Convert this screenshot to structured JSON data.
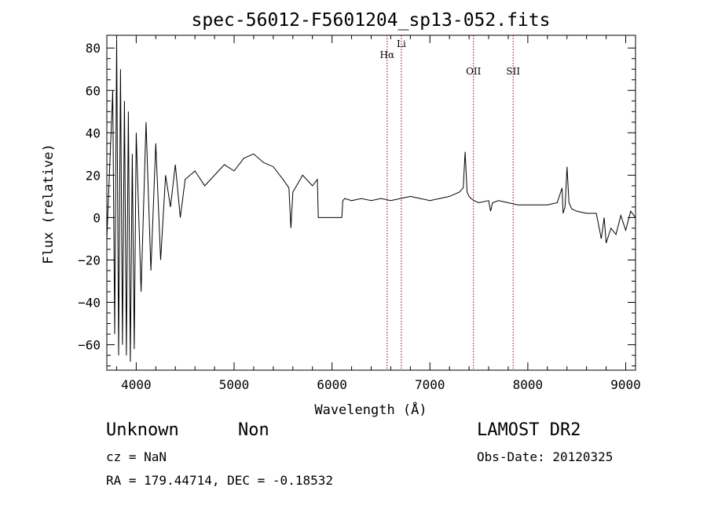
{
  "chart_data": {
    "type": "line",
    "title": "spec-56012-F5601204_sp13-052.fits",
    "xlabel": "Wavelength (Å)",
    "ylabel": "Flux (relative)",
    "xlim": [
      3700,
      9100
    ],
    "ylim": [
      -72,
      86
    ],
    "x_ticks": [
      4000,
      5000,
      6000,
      7000,
      8000,
      9000
    ],
    "y_ticks": [
      -60,
      -40,
      -20,
      0,
      20,
      40,
      60,
      80
    ],
    "grid": false,
    "line_color": "#000000",
    "marker_color": "#8b0000",
    "markers": [
      {
        "label": "Hα",
        "wavelength": 6563
      },
      {
        "label": "Li",
        "wavelength": 6708
      },
      {
        "label": "OII",
        "wavelength": 7445
      },
      {
        "label": "SII",
        "wavelength": 7850
      }
    ],
    "series": [
      {
        "x": [
          3700,
          3760,
          3780,
          3800,
          3820,
          3840,
          3860,
          3880,
          3900,
          3920,
          3940,
          3960,
          3980,
          4000,
          4050,
          4100,
          4150,
          4200,
          4250,
          4300,
          4350,
          4400,
          4450,
          4500,
          4600,
          4700,
          4800,
          4900,
          5000,
          5100,
          5200,
          5300,
          5400,
          5500,
          5560,
          5580,
          5600,
          5700,
          5800,
          5850,
          5860,
          6100,
          6110,
          6130,
          6200,
          6300,
          6400,
          6500,
          6600,
          6700,
          6800,
          6900,
          7000,
          7100,
          7200,
          7300,
          7340,
          7360,
          7380,
          7400,
          7420,
          7450,
          7500,
          7600,
          7620,
          7640,
          7700,
          7800,
          7900,
          8000,
          8100,
          8200,
          8300,
          8350,
          8360,
          8380,
          8400,
          8420,
          8450,
          8500,
          8600,
          8700,
          8750,
          8780,
          8800,
          8850,
          8900,
          8950,
          9000,
          9050,
          9100
        ],
        "y": [
          -10,
          60,
          -55,
          84,
          -65,
          70,
          -60,
          55,
          -65,
          50,
          -68,
          30,
          -62,
          40,
          -35,
          45,
          -25,
          35,
          -20,
          20,
          5,
          25,
          0,
          18,
          22,
          15,
          20,
          25,
          22,
          28,
          30,
          26,
          24,
          18,
          14,
          -5,
          12,
          20,
          15,
          18,
          0,
          0,
          8,
          9,
          8,
          9,
          8,
          9,
          8,
          9,
          10,
          9,
          8,
          9,
          10,
          12,
          14,
          31,
          12,
          10,
          9,
          8,
          7,
          8,
          3,
          7,
          8,
          7,
          6,
          6,
          6,
          6,
          7,
          14,
          2,
          5,
          24,
          7,
          4,
          3,
          2,
          2,
          -10,
          0,
          -12,
          -5,
          -8,
          1,
          -6,
          3,
          0
        ]
      }
    ]
  },
  "info": {
    "object_class": "Unknown",
    "object_subclass": "Non",
    "survey": "LAMOST DR2",
    "cz": "cz = NaN",
    "obs_date": "Obs-Date: 20120325",
    "radec": "RA = 179.44714, DEC =  -0.18532"
  }
}
